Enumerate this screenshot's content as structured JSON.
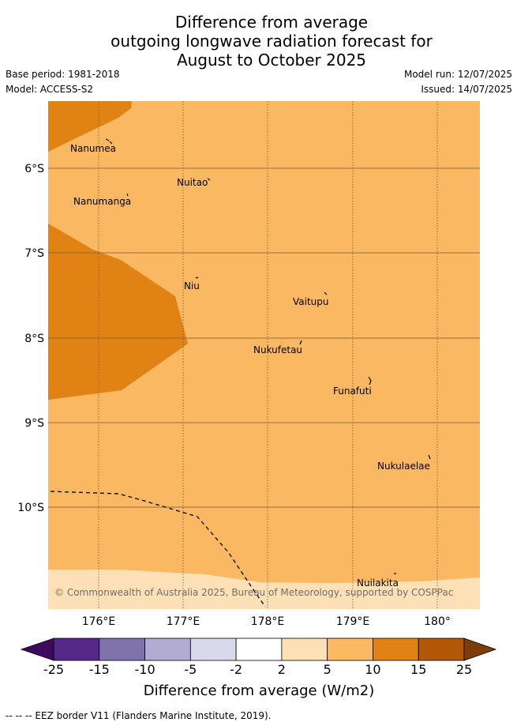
{
  "title": {
    "line1": "Difference from average",
    "line2": "outgoing longwave radiation forecast for",
    "line3": "August to October 2025"
  },
  "meta": {
    "base_period": "Base period: 1981-2018",
    "model": "Model: ACCESS-S2",
    "model_run": "Model run: 12/07/2025",
    "issued": "Issued: 14/07/2025"
  },
  "map": {
    "lat_ticks": [
      "6°S",
      "7°S",
      "8°S",
      "9°S",
      "10°S"
    ],
    "lon_ticks": [
      "176°E",
      "177°E",
      "178°E",
      "179°E",
      "180°"
    ],
    "places": [
      "Nanumea",
      "Nuitao",
      "Nanumanga",
      "Niu",
      "Vaitupu",
      "Nukufetau",
      "Funafuti",
      "Nukulaelae",
      "Nuilakita"
    ],
    "copyright": "© Commonwealth of Australia 2025, Bureau of Meteorology, supported by COSPPac",
    "colors": {
      "band_5_10": "#fbb862",
      "band_10_15": "#e08214",
      "band_2_5": "#fee0b6",
      "grid": "#7a5a30"
    }
  },
  "colorbar": {
    "ticks": [
      "-25",
      "-15",
      "-10",
      "-5",
      "-2",
      "2",
      "5",
      "10",
      "15",
      "25"
    ],
    "colors": [
      "#3f0a5e",
      "#542788",
      "#8073ac",
      "#b2abd2",
      "#d8daeb",
      "#ffffff",
      "#fee0b6",
      "#fdb863",
      "#e08214",
      "#b35806",
      "#7f3b08"
    ],
    "label": "Difference from average (W/m2)"
  },
  "legend": {
    "eez": "-- -- -- EEZ border V11 (Flanders Marine Institute, 2019)."
  }
}
